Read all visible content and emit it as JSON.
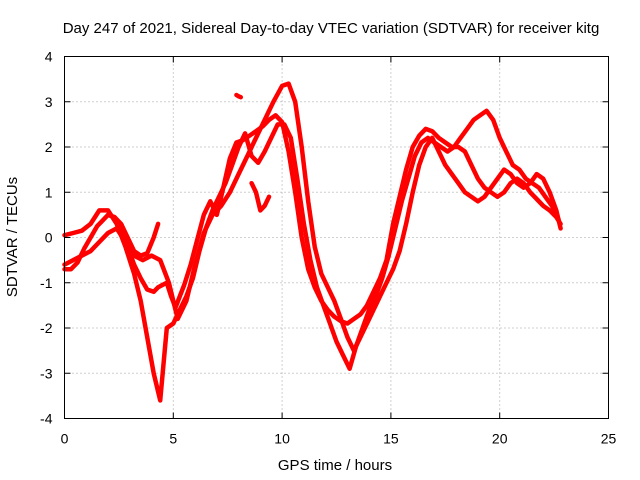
{
  "chart_data": {
    "type": "scatter",
    "title": "Day 247 of 2021, Sidereal Day-to-day VTEC variation (SDTVAR) for receiver kitg",
    "xlabel": "GPS time / hours",
    "ylabel": "SDTVAR / TECUs",
    "xlim": [
      0,
      25
    ],
    "ylim": [
      -4,
      4
    ],
    "xticks": [
      "0",
      "5",
      "10",
      "15",
      "20",
      "25"
    ],
    "yticks": [
      "-4",
      "-3",
      "-2",
      "-1",
      "0",
      "1",
      "2",
      "3",
      "4"
    ],
    "grid": true,
    "marker": "plus",
    "color": "#ff0000",
    "series": [
      {
        "x": [
          0.0,
          0.3,
          0.6,
          0.9,
          1.2,
          1.5,
          1.7,
          2.0,
          2.3,
          2.6,
          2.9,
          3.2,
          3.5,
          3.8,
          4.1,
          4.3,
          4.5,
          4.7,
          4.9,
          5.1,
          5.3,
          5.5,
          5.8,
          6.1,
          6.4,
          6.7,
          7.0,
          7.3,
          7.6,
          7.9,
          8.2,
          8.5,
          8.8,
          9.1,
          9.4,
          9.7,
          10.0,
          10.3,
          10.6,
          10.9,
          11.2,
          11.5,
          11.8,
          12.1,
          12.4,
          12.7,
          13.0,
          13.3,
          13.6,
          13.9,
          14.2,
          14.5,
          14.8,
          15.1,
          15.4,
          15.7,
          16.0,
          16.3,
          16.6,
          16.9,
          17.2,
          17.5,
          17.8,
          18.1,
          18.4,
          18.7,
          19.0,
          19.3,
          19.6,
          19.9,
          20.2,
          20.5,
          20.8,
          21.1,
          21.4,
          21.7,
          22.0,
          22.3,
          22.6,
          22.8
        ],
        "y": [
          -0.7,
          -0.7,
          -0.55,
          -0.25,
          0.0,
          0.25,
          0.35,
          0.5,
          0.45,
          0.2,
          -0.2,
          -0.6,
          -0.9,
          -1.15,
          -1.2,
          -1.1,
          -1.05,
          -1.0,
          -1.3,
          -1.55,
          -1.3,
          -1.05,
          -0.6,
          -0.05,
          0.5,
          0.8,
          0.5,
          1.1,
          1.75,
          2.1,
          2.15,
          2.25,
          2.35,
          2.45,
          2.6,
          2.7,
          2.55,
          1.9,
          1.0,
          0.0,
          -0.7,
          -1.1,
          -1.4,
          -1.6,
          -1.75,
          -1.85,
          -1.9,
          -1.8,
          -1.7,
          -1.5,
          -1.2,
          -0.9,
          -0.5,
          0.3,
          0.9,
          1.5,
          2.0,
          2.25,
          2.4,
          2.35,
          2.2,
          2.1,
          2.0,
          2.0,
          1.9,
          1.6,
          1.3,
          1.1,
          1.0,
          0.9,
          1.0,
          1.2,
          1.3,
          1.2,
          1.0,
          0.85,
          0.7,
          0.6,
          0.45,
          0.3
        ]
      },
      {
        "x": [
          0.0,
          0.4,
          0.8,
          1.2,
          1.6,
          2.0,
          2.4,
          2.8,
          3.2,
          3.5,
          3.8,
          4.1,
          4.4,
          4.7,
          5.0,
          5.3,
          5.6,
          5.9,
          6.2,
          6.5,
          6.8,
          7.1,
          7.4,
          7.7,
          8.0,
          8.3,
          8.6,
          8.9,
          9.2,
          9.5,
          9.8,
          10.1,
          10.4,
          10.7,
          11.0,
          11.3,
          11.6,
          11.9,
          12.2,
          12.5,
          12.8,
          13.1,
          13.4,
          13.7,
          14.0,
          14.3,
          14.6,
          14.9,
          15.2,
          15.5,
          15.8,
          16.1,
          16.4,
          16.7,
          17.0,
          17.3,
          17.6,
          17.9,
          18.2,
          18.5,
          18.8,
          19.1,
          19.4,
          19.7,
          20.0,
          20.3,
          20.6,
          20.9,
          21.2,
          21.5,
          21.8,
          22.1,
          22.4,
          22.7
        ],
        "y": [
          0.05,
          0.1,
          0.15,
          0.3,
          0.6,
          0.6,
          0.3,
          -0.2,
          -0.8,
          -1.4,
          -2.2,
          -3.0,
          -3.6,
          -2.0,
          -1.9,
          -1.6,
          -1.3,
          -0.9,
          -0.3,
          0.2,
          0.6,
          0.9,
          1.2,
          1.6,
          2.0,
          2.3,
          1.8,
          1.65,
          1.9,
          2.2,
          2.5,
          2.5,
          2.2,
          1.3,
          0.3,
          -0.5,
          -1.1,
          -1.5,
          -1.9,
          -2.3,
          -2.6,
          -2.9,
          -2.4,
          -2.0,
          -1.6,
          -1.3,
          -0.9,
          -0.4,
          0.2,
          0.8,
          1.3,
          1.8,
          2.1,
          2.2,
          2.1,
          2.0,
          1.9,
          2.0,
          2.2,
          2.4,
          2.6,
          2.7,
          2.8,
          2.6,
          2.2,
          1.9,
          1.6,
          1.5,
          1.3,
          1.2,
          1.1,
          0.9,
          0.7,
          0.4
        ]
      },
      {
        "x": [
          0.0,
          0.4,
          0.8,
          1.2,
          1.6,
          2.0,
          2.4,
          2.8,
          3.2,
          3.6,
          4.0,
          4.4,
          4.8,
          5.2,
          5.6,
          6.0,
          6.4,
          6.8,
          7.2,
          7.6,
          8.0,
          8.4,
          8.8,
          9.2,
          9.6,
          10.0,
          10.3,
          10.6,
          10.9,
          11.2,
          11.5,
          11.8,
          12.1,
          12.4,
          12.7,
          13.0,
          13.3,
          13.6,
          13.9,
          14.2,
          14.5,
          14.8,
          15.1,
          15.4,
          15.7,
          16.0,
          16.3,
          16.6,
          16.9,
          17.2,
          17.5,
          17.8,
          18.1,
          18.4,
          18.7,
          19.0,
          19.3,
          19.6,
          19.9,
          20.2,
          20.5,
          20.8,
          21.1,
          21.4,
          21.7,
          22.0,
          22.3,
          22.6,
          22.8
        ],
        "y": [
          -0.6,
          -0.5,
          -0.4,
          -0.3,
          -0.1,
          0.1,
          0.2,
          -0.1,
          -0.4,
          -0.5,
          -0.4,
          -0.5,
          -1.0,
          -1.8,
          -1.4,
          -0.6,
          0.1,
          0.5,
          0.7,
          1.0,
          1.4,
          1.8,
          2.2,
          2.6,
          3.0,
          3.35,
          3.4,
          3.0,
          2.0,
          0.8,
          -0.2,
          -0.8,
          -1.1,
          -1.4,
          -1.8,
          -2.2,
          -2.5,
          -2.2,
          -1.9,
          -1.6,
          -1.3,
          -1.0,
          -0.7,
          -0.3,
          0.3,
          1.0,
          1.6,
          2.0,
          2.2,
          1.9,
          1.6,
          1.4,
          1.2,
          1.0,
          0.9,
          0.8,
          0.9,
          1.1,
          1.3,
          1.5,
          1.4,
          1.2,
          1.1,
          1.2,
          1.4,
          1.3,
          1.0,
          0.6,
          0.2
        ]
      },
      {
        "x": [
          7.9,
          8.0,
          8.1
        ],
        "y": [
          3.15,
          3.12,
          3.1
        ]
      },
      {
        "x": [
          8.6,
          8.8,
          9.0,
          9.2,
          9.4
        ],
        "y": [
          1.2,
          1.0,
          0.6,
          0.7,
          0.9
        ]
      },
      {
        "x": [
          2.0,
          2.3,
          2.6,
          2.9,
          3.2,
          3.5,
          3.8,
          4.1,
          4.3
        ],
        "y": [
          0.5,
          0.45,
          0.3,
          0.0,
          -0.3,
          -0.4,
          -0.35,
          0.0,
          0.3
        ]
      }
    ]
  }
}
